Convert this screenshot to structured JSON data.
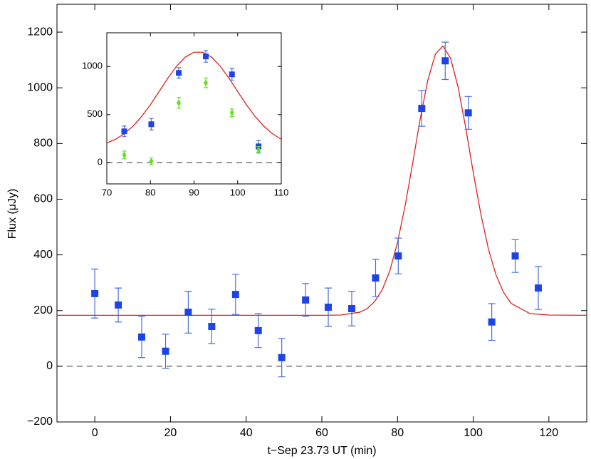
{
  "chart_data": [
    {
      "type": "scatter",
      "xlabel": "t−Sep 23.73 UT  (min)",
      "ylabel": "Flux  (μJy)",
      "xlim": [
        -10,
        130
      ],
      "ylim": [
        -200,
        1300
      ],
      "xticks": [
        0,
        20,
        40,
        60,
        80,
        100,
        120
      ],
      "yticks": [
        {
          "value": -200,
          "label": "−200"
        },
        0,
        200,
        400,
        600,
        800,
        1000,
        1200
      ],
      "hline": 0,
      "hline_style": "dashed",
      "series": [
        {
          "kind": "line",
          "color": "#e0201e",
          "x": [
            -10,
            0,
            10,
            20,
            30,
            40,
            50,
            60,
            65,
            70,
            72,
            74,
            76,
            78,
            80,
            82,
            84,
            86,
            88,
            90,
            92,
            94,
            96,
            98,
            100,
            102,
            104,
            106,
            108,
            110,
            115,
            120,
            130
          ],
          "values": [
            183,
            183,
            183,
            183,
            183,
            183,
            183,
            183,
            184,
            194,
            207,
            233,
            276,
            344,
            445,
            576,
            729,
            889,
            1027,
            1121,
            1150,
            1107,
            1003,
            858,
            697,
            548,
            422,
            329,
            266,
            226,
            189,
            184,
            183
          ]
        },
        {
          "kind": "errorbar",
          "marker": "square",
          "color": "#1f44e6",
          "error_color": "#4a6ee0",
          "x": [
            0,
            6.2,
            12.4,
            18.7,
            24.7,
            30.9,
            37.2,
            43.2,
            49.4,
            55.7,
            61.7,
            67.9,
            74.2,
            80.2,
            86.4,
            92.6,
            98.7,
            104.9,
            111.1,
            117.2
          ],
          "values": [
            261,
            220,
            105,
            54,
            194,
            143,
            258,
            128,
            31,
            238,
            212,
            207,
            317,
            396,
            926,
            1097,
            910,
            159,
            396,
            281
          ],
          "errors": [
            88,
            61,
            74,
            61,
            75,
            62,
            72,
            61,
            69,
            59,
            69,
            62,
            67,
            64,
            64,
            67,
            59,
            66,
            59,
            77
          ]
        }
      ]
    },
    {
      "type": "scatter",
      "xlim": [
        70,
        110
      ],
      "ylim": [
        -220,
        1350
      ],
      "xticks": [
        70,
        80,
        90,
        100,
        110
      ],
      "yticks": [
        0,
        500,
        1000
      ],
      "hline": 0,
      "hline_style": "dashed",
      "series": [
        {
          "kind": "line",
          "color": "#e0201e",
          "x": [
            70,
            72,
            74,
            76,
            78,
            80,
            82,
            84,
            86,
            88,
            90,
            92,
            94,
            96,
            98,
            100,
            102,
            104,
            106,
            108,
            110
          ],
          "values": [
            205,
            243,
            301,
            379,
            481,
            603,
            740,
            879,
            1003,
            1098,
            1148,
            1148,
            1098,
            1003,
            879,
            740,
            603,
            481,
            379,
            301,
            243
          ]
        },
        {
          "kind": "errorbar",
          "marker": "square",
          "color": "#1f44e6",
          "error_color": "#4a6ee0",
          "x": [
            74,
            80.2,
            86.5,
            92.7,
            98.7,
            104.8
          ],
          "values": [
            326,
            400,
            933,
            1104,
            918,
            170
          ],
          "errors": [
            55,
            60,
            55,
            60,
            60,
            60
          ]
        },
        {
          "kind": "errorbar",
          "marker": "diamond",
          "color": "#66dd22",
          "error_color": "#66dd22",
          "x": [
            74,
            80.2,
            86.5,
            92.7,
            98.7,
            104.8
          ],
          "values": [
            81,
            15,
            622,
            830,
            519,
            133
          ],
          "errors": [
            40,
            35,
            55,
            50,
            40,
            35
          ]
        }
      ]
    }
  ]
}
